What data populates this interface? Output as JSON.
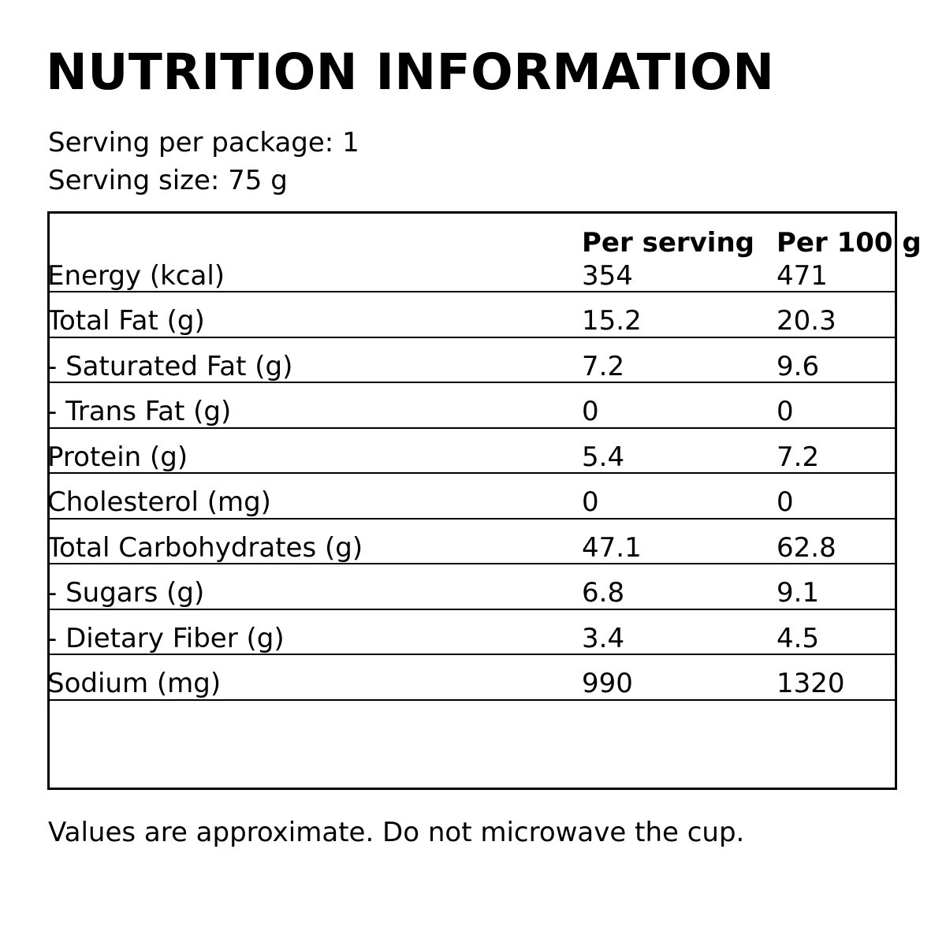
{
  "title": "NUTRITION INFORMATION",
  "serving_info": {
    "per_package": "Serving per package: 1",
    "size": "Serving size: 75 g"
  },
  "table": {
    "columns": [
      "",
      "Per serving",
      "Per 100 g"
    ],
    "rows": [
      {
        "label": "Energy (kcal)",
        "per_serving": "354",
        "per_100g": "471",
        "indent": false
      },
      {
        "label": "Total Fat (g)",
        "per_serving": "15.2",
        "per_100g": "20.3",
        "indent": false
      },
      {
        "label": "- Saturated Fat (g)",
        "per_serving": "7.2",
        "per_100g": "9.6",
        "indent": true
      },
      {
        "label": "- Trans Fat (g)",
        "per_serving": "0",
        "per_100g": "0",
        "indent": true
      },
      {
        "label": "Protein (g)",
        "per_serving": "5.4",
        "per_100g": "7.2",
        "indent": false
      },
      {
        "label": "Cholesterol (mg)",
        "per_serving": "0",
        "per_100g": "0",
        "indent": false
      },
      {
        "label": "Total Carbohydrates (g)",
        "per_serving": "47.1",
        "per_100g": "62.8",
        "indent": false
      },
      {
        "label": "- Sugars (g)",
        "per_serving": "6.8",
        "per_100g": "9.1",
        "indent": true
      },
      {
        "label": "- Dietary Fiber (g)",
        "per_serving": "3.4",
        "per_100g": "4.5",
        "indent": true
      },
      {
        "label": "Sodium (mg)",
        "per_serving": "990",
        "per_100g": "1320",
        "indent": false
      }
    ]
  },
  "footer": "Values are approximate. Do not microwave the cup.",
  "colors": {
    "text": "#000000",
    "background": "#ffffff",
    "border": "#000000"
  }
}
